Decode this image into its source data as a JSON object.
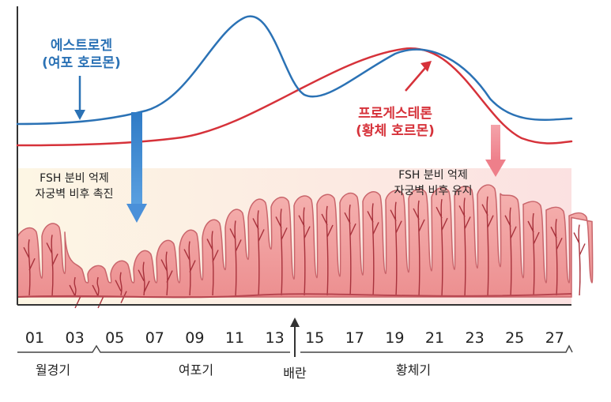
{
  "hormones": {
    "estrogen": {
      "name": "에스트로겐",
      "sub": "(여포 호르몬)",
      "color": "#2b72b5"
    },
    "progesterone": {
      "name": "프로게스테론",
      "sub": "(황체 호르몬)",
      "color": "#d6323a"
    }
  },
  "annotations": {
    "left": {
      "line1": "FSH 분비 억제",
      "line2": "자궁벽 비후 촉진"
    },
    "right": {
      "line1": "FSH 분비 억제",
      "line2": "자궁벽 비후 유지"
    }
  },
  "days": [
    "01",
    "03",
    "05",
    "07",
    "09",
    "11",
    "13",
    "15",
    "17",
    "19",
    "21",
    "23",
    "25",
    "27"
  ],
  "phases": {
    "menstrual": "월경기",
    "follicular": "여포기",
    "ovulation": "배란",
    "luteal": "황체기"
  },
  "colors": {
    "tissue": "#f3a8a8",
    "tissue_edge": "#c9656b",
    "vessel": "#a8323c",
    "left_arrow": "#4a90d9",
    "right_arrow": "#f2909a"
  }
}
